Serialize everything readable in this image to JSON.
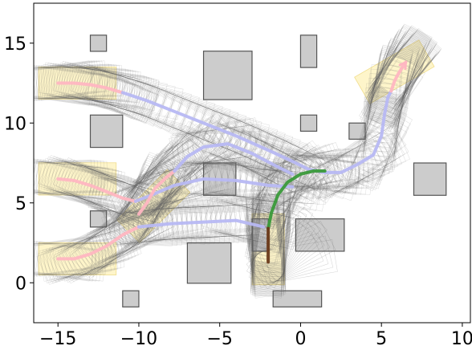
{
  "chart_data": {
    "type": "scatter",
    "title": "",
    "xlabel": "",
    "ylabel": "",
    "xlim": [
      -16.5,
      10.5
    ],
    "ylim": [
      -2.5,
      17.5
    ],
    "grid": false,
    "x_ticks": [
      {
        "value": -15,
        "label": "−15"
      },
      {
        "value": -10,
        "label": "−10"
      },
      {
        "value": -5,
        "label": "−5"
      },
      {
        "value": 0,
        "label": "0"
      },
      {
        "value": 5,
        "label": "5"
      },
      {
        "value": 10,
        "label": "10"
      }
    ],
    "y_ticks": [
      {
        "value": 0,
        "label": "0"
      },
      {
        "value": 5,
        "label": "5"
      },
      {
        "value": 10,
        "label": "10"
      },
      {
        "value": 15,
        "label": "15"
      }
    ],
    "obstacles": [
      {
        "x0": -13,
        "y0": 14.5,
        "x1": -12,
        "y1": 15.5
      },
      {
        "x0": -6,
        "y0": 11.5,
        "x1": -3,
        "y1": 14.5
      },
      {
        "x0": 0,
        "y0": 13.5,
        "x1": 1,
        "y1": 15.5
      },
      {
        "x0": -13,
        "y0": 8.5,
        "x1": -11,
        "y1": 10.5
      },
      {
        "x0": 0,
        "y0": 9.5,
        "x1": 1,
        "y1": 10.5
      },
      {
        "x0": 3,
        "y0": 9,
        "x1": 4,
        "y1": 10
      },
      {
        "x0": -6,
        "y0": 5.5,
        "x1": -4,
        "y1": 7.5
      },
      {
        "x0": 7,
        "y0": 5.5,
        "x1": 9,
        "y1": 7.5
      },
      {
        "x0": -13,
        "y0": 3.5,
        "x1": -12,
        "y1": 4.5
      },
      {
        "x0": -3,
        "y0": 2,
        "x1": -2,
        "y1": 4
      },
      {
        "x0": -0.3,
        "y0": 2,
        "x1": 2.7,
        "y1": 4
      },
      {
        "x0": -7,
        "y0": 0,
        "x1": -4.3,
        "y1": 2.5
      },
      {
        "x0": -11,
        "y0": -1.5,
        "x1": -10,
        "y1": -0.5
      },
      {
        "x0": -1.7,
        "y0": -1.5,
        "x1": 1.3,
        "y1": -0.5
      }
    ],
    "goal_regions": [
      {
        "cx": -13.8,
        "cy": 12.5,
        "w": 4.8,
        "h": 2,
        "angle": 0
      },
      {
        "cx": -13.8,
        "cy": 6.5,
        "w": 4.8,
        "h": 2,
        "angle": 0
      },
      {
        "cx": -13.8,
        "cy": 1.5,
        "w": 4.8,
        "h": 2,
        "angle": 0
      },
      {
        "cx": -9.1,
        "cy": 4.8,
        "w": 2,
        "h": 4.4,
        "angle": 45
      },
      {
        "cx": 5.8,
        "cy": 13.2,
        "w": 4.6,
        "h": 1.9,
        "angle": -30
      },
      {
        "cx": -2,
        "cy": 2.1,
        "w": 2,
        "h": 4.4,
        "angle": 0
      }
    ],
    "series": [
      {
        "color": "#ffb6c1",
        "points": [
          [
            -15,
            12.5
          ],
          [
            -14,
            12.5
          ],
          [
            -13,
            12.4
          ],
          [
            -12,
            12.2
          ],
          [
            -11,
            11.9
          ]
        ]
      },
      {
        "color": "#b7b8f3",
        "points": [
          [
            -11,
            11.9
          ],
          [
            -9.5,
            11.4
          ],
          [
            -8,
            10.8
          ],
          [
            -6,
            10
          ],
          [
            -4,
            9.2
          ],
          [
            -2,
            8.3
          ],
          [
            -0.5,
            7.6
          ],
          [
            0.5,
            7.1
          ],
          [
            1.5,
            6.9
          ]
        ]
      },
      {
        "color": "#ffb6c1",
        "points": [
          [
            -15,
            6.5
          ],
          [
            -14,
            6.4
          ],
          [
            -13,
            6.1
          ],
          [
            -12,
            5.7
          ],
          [
            -11,
            5.3
          ],
          [
            -10.2,
            5.1
          ]
        ]
      },
      {
        "color": "#b7b8f3",
        "points": [
          [
            -10.2,
            5.1
          ],
          [
            -9.2,
            5.5
          ],
          [
            -7.8,
            6.1
          ],
          [
            -6,
            6.5
          ],
          [
            -4,
            6.4
          ],
          [
            -2,
            6.1
          ],
          [
            -0.5,
            6
          ]
        ]
      },
      {
        "color": "#ffb6c1",
        "points": [
          [
            -15,
            1.5
          ],
          [
            -14,
            1.5
          ],
          [
            -13,
            1.8
          ],
          [
            -12,
            2.3
          ],
          [
            -11,
            3
          ],
          [
            -10,
            3.5
          ]
        ]
      },
      {
        "color": "#b7b8f3",
        "points": [
          [
            -10,
            3.5
          ],
          [
            -8,
            3.7
          ],
          [
            -6,
            3.8
          ],
          [
            -4,
            3.9
          ],
          [
            -2.3,
            3.5
          ]
        ]
      },
      {
        "color": "#ffb6c1",
        "points": [
          [
            -10,
            4.3
          ],
          [
            -9.5,
            5
          ],
          [
            -9,
            5.9
          ],
          [
            -8.3,
            6.6
          ],
          [
            -7.8,
            7
          ]
        ]
      },
      {
        "color": "#b7b8f3",
        "points": [
          [
            -7.8,
            7
          ],
          [
            -7,
            7.9
          ],
          [
            -6,
            8.5
          ],
          [
            -4.5,
            8.7
          ],
          [
            -3,
            8.1
          ],
          [
            -1.5,
            7.3
          ],
          [
            -0.5,
            6.8
          ]
        ]
      },
      {
        "color": "#b7b8f3",
        "points": [
          [
            1.5,
            6.9
          ],
          [
            2.5,
            6.9
          ],
          [
            3.5,
            7.4
          ],
          [
            4.5,
            8
          ],
          [
            5,
            9.2
          ],
          [
            5.2,
            10.6
          ],
          [
            5.4,
            11.6
          ],
          [
            5.6,
            12
          ]
        ]
      },
      {
        "color": "#ffb6c1",
        "points": [
          [
            5.6,
            12
          ],
          [
            5.8,
            12.6
          ],
          [
            6,
            13
          ],
          [
            6.3,
            13.5
          ],
          [
            6.5,
            13.8
          ]
        ]
      },
      {
        "color": "#3a9a3a",
        "points": [
          [
            -2,
            3.4
          ],
          [
            -1.8,
            4.4
          ],
          [
            -1.4,
            5.5
          ],
          [
            -0.8,
            6.3
          ],
          [
            0,
            6.8
          ],
          [
            0.8,
            7
          ],
          [
            1.5,
            7
          ]
        ]
      },
      {
        "color": "#6b3a1a",
        "points": [
          [
            -2,
            1.3
          ],
          [
            -2,
            2.4
          ],
          [
            -2,
            3.4
          ]
        ]
      }
    ]
  }
}
